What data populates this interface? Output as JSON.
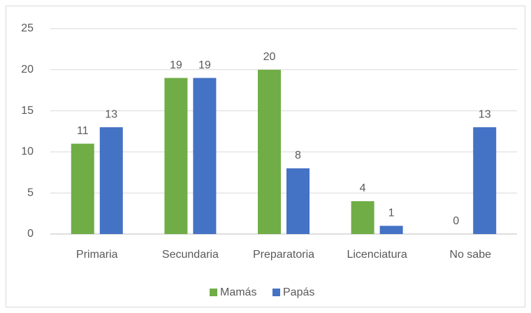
{
  "chart_data": {
    "type": "bar",
    "categories": [
      "Primaria",
      "Secundaria",
      "Preparatoria",
      "Licenciatura",
      "No sabe"
    ],
    "series": [
      {
        "name": "Mamás",
        "color": "#70ad47",
        "values": [
          11,
          19,
          20,
          4,
          0
        ]
      },
      {
        "name": "Papás",
        "color": "#4472c4",
        "values": [
          13,
          19,
          8,
          1,
          13
        ]
      }
    ],
    "ylim": [
      0,
      25
    ],
    "yticks": [
      0,
      5,
      10,
      15,
      20,
      25
    ],
    "grid": true,
    "legend": "bottom"
  }
}
